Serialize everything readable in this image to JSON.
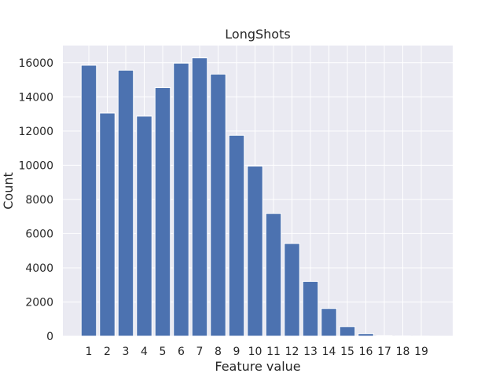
{
  "chart_data": {
    "type": "bar",
    "title": "LongShots",
    "xlabel": "Feature value",
    "ylabel": "Count",
    "categories": [
      "1",
      "2",
      "3",
      "4",
      "5",
      "6",
      "7",
      "8",
      "9",
      "10",
      "11",
      "12",
      "13",
      "14",
      "15",
      "16",
      "17",
      "18",
      "19"
    ],
    "values": [
      15850,
      13050,
      15560,
      12870,
      14540,
      15970,
      16280,
      15330,
      11750,
      9950,
      7180,
      5420,
      3200,
      1620,
      560,
      150,
      30,
      10,
      5
    ],
    "ylim": [
      0,
      17000
    ],
    "yticks": [
      0,
      2000,
      4000,
      6000,
      8000,
      10000,
      12000,
      14000,
      16000
    ],
    "grid": true,
    "bar_color": "#4C72B0",
    "background_color": "#EAEAF2"
  }
}
